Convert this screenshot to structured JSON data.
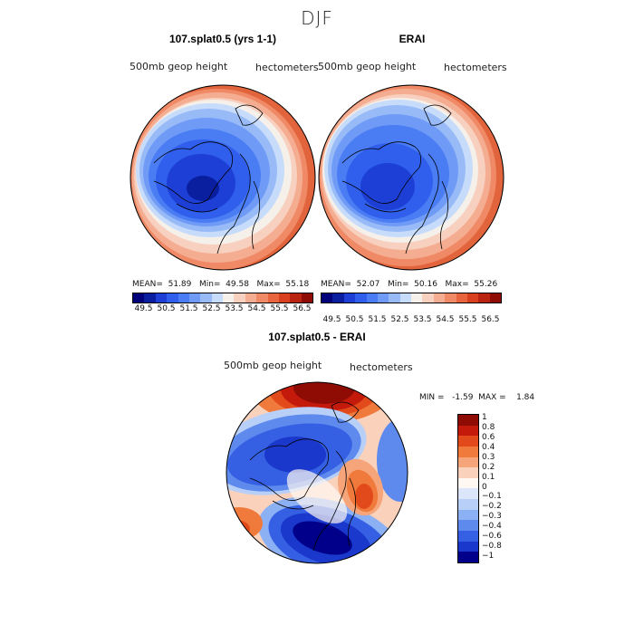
{
  "season_title": "DJF",
  "panels": [
    {
      "title": "107.splat0.5 (yrs 1-1)",
      "field_label": "500mb  geop  height",
      "units_label": "hectometers",
      "stats": "MEAN=  51.89   Min=  49.58   Max=  55.18"
    },
    {
      "title": "ERAI",
      "field_label": "500mb  geop  height",
      "units_label": "hectometers",
      "stats": "MEAN=  52.07   Min=  50.16   Max=  55.26"
    }
  ],
  "abs_colorbar": {
    "colors": [
      "#00007a",
      "#0a1fa0",
      "#1d3fd6",
      "#2f5fec",
      "#4a7cf4",
      "#6f9bf6",
      "#98bbf8",
      "#c7dcfa",
      "#f5f0ea",
      "#f8d0bf",
      "#f5ad92",
      "#f08a66",
      "#e8643e",
      "#d8401f",
      "#bb2311",
      "#8f0c05"
    ],
    "ticks": [
      "49.5",
      "50.5",
      "51.5",
      "52.5",
      "53.5",
      "54.5",
      "55.5",
      "56.5"
    ]
  },
  "diff_panel": {
    "title": "107.splat0.5 - ERAI",
    "field_label": "500mb  geop  height",
    "units_label": "hectometers",
    "stats": "MIN =   -1.59  MAX =    1.84"
  },
  "diff_colorbar": {
    "colors": [
      "#8f0c05",
      "#c41a0c",
      "#e24a1c",
      "#f07a3c",
      "#f6a57a",
      "#fad2bc",
      "#fff8f2",
      "#dbe6fb",
      "#b8cff8",
      "#8cb0f4",
      "#5e8aee",
      "#3560e4",
      "#1a38cc",
      "#00008a"
    ],
    "ticks": [
      "1",
      "0.8",
      "0.6",
      "0.4",
      "0.3",
      "0.2",
      "0.1",
      "0",
      "−0.1",
      "−0.2",
      "−0.3",
      "−0.4",
      "−0.6",
      "−0.8",
      "−1"
    ]
  }
}
